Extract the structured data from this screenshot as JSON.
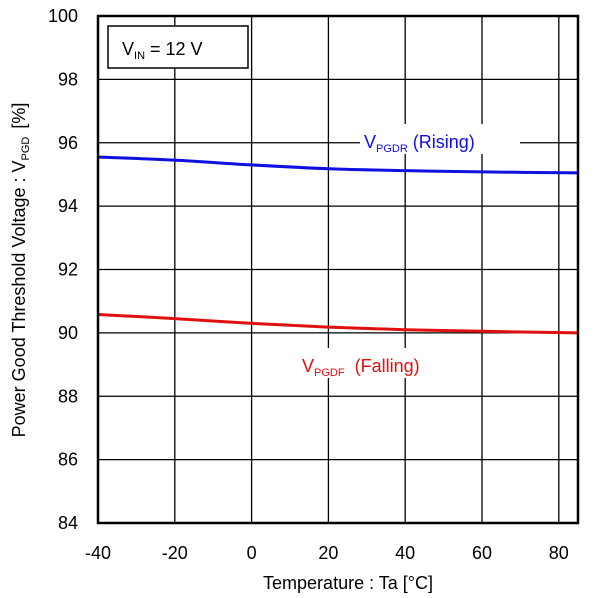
{
  "chart_data": {
    "type": "line",
    "xlabel": "Temperature : Ta [°C]",
    "ylabel": {
      "main": "Power Good Threshold Voltage : V",
      "sub": "PGD",
      "unit": "[%]"
    },
    "xlim": [
      -40,
      85
    ],
    "ylim": [
      84,
      100
    ],
    "x_ticks": [
      -40,
      -20,
      0,
      20,
      40,
      60,
      80
    ],
    "y_ticks": [
      84,
      86,
      88,
      90,
      92,
      94,
      96,
      98,
      100
    ],
    "grid": true,
    "condition": {
      "main": "V",
      "sub": "IN",
      "rest": " = 12 V"
    },
    "series": [
      {
        "label_main": "V",
        "label_sub": "PGDR",
        "label_rest": " (Rising)",
        "color": "#1010e0",
        "x": [
          -40,
          -20,
          0,
          20,
          40,
          60,
          85
        ],
        "y": [
          95.55,
          95.45,
          95.3,
          95.18,
          95.12,
          95.08,
          95.05
        ]
      },
      {
        "label_main": "V",
        "label_sub": "PGDF",
        "label_rest": "  (Falling)",
        "color": "#e01010",
        "x": [
          -40,
          -20,
          0,
          20,
          40,
          60,
          85
        ],
        "y": [
          90.58,
          90.45,
          90.3,
          90.18,
          90.1,
          90.05,
          90.0
        ]
      }
    ]
  }
}
